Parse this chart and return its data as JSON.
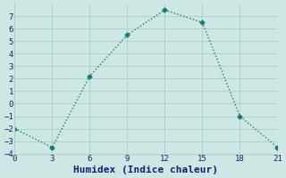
{
  "x": [
    0,
    3,
    6,
    9,
    12,
    15,
    18,
    21
  ],
  "y": [
    -2,
    -3.5,
    2.2,
    5.5,
    7.5,
    6.5,
    -1.0,
    -3.5
  ],
  "line_color": "#1a7a6e",
  "marker": "D",
  "marker_size": 2.5,
  "xlabel": "Humidex (Indice chaleur)",
  "xlim": [
    0,
    21
  ],
  "ylim": [
    -4,
    8
  ],
  "xticks": [
    0,
    3,
    6,
    9,
    12,
    15,
    18,
    21
  ],
  "yticks": [
    -4,
    -3,
    -2,
    -1,
    0,
    1,
    2,
    3,
    4,
    5,
    6,
    7
  ],
  "background_color": "#cde8e4",
  "grid_color": "#b0d0cb",
  "font_color": "#1a1a6e",
  "xlabel_fontsize": 8,
  "tick_fontsize": 6.5
}
